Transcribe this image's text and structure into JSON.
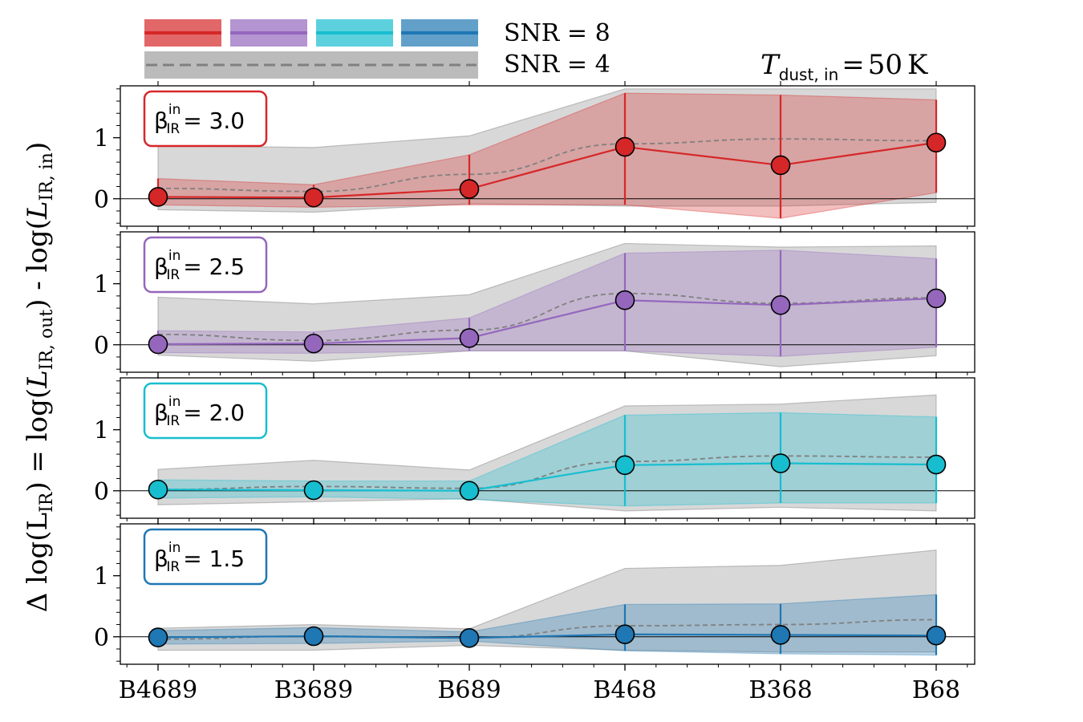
{
  "chart_data": {
    "type": "line",
    "annotation": {
      "prefix": "T",
      "sub": "dust, in",
      "equals": "=",
      "value": "50",
      "unit": "K"
    },
    "ylabel": "Δ log(L_IR) = log(L_IR, out) - log(L_IR, in)",
    "ylabel_parts": {
      "a": "Δ log(L",
      "a_sub": "IR",
      "b": ") = log(",
      "b_var": "L",
      "b_sub": "IR, out",
      "c": ") - log(",
      "c_var": "L",
      "c_sub": "IR, in",
      "d": ")"
    },
    "categories": [
      "B4689",
      "B3689",
      "B689",
      "B468",
      "B368",
      "B68"
    ],
    "ylim": [
      -0.45,
      1.85
    ],
    "yticks": [
      0,
      1
    ],
    "legend": {
      "snr8": "SNR = 8",
      "snr4": "SNR = 4"
    },
    "panels": [
      {
        "beta_label": "β",
        "beta_sup": "in",
        "beta_sub": "IR",
        "beta_value": "= 3.0",
        "color": "#d62728",
        "snr8_values": [
          0.03,
          0.02,
          0.16,
          0.85,
          0.55,
          0.92
        ],
        "snr8_err_low": [
          -0.1,
          -0.14,
          -0.1,
          -0.1,
          -0.32,
          0.1
        ],
        "snr8_err_high": [
          0.33,
          0.23,
          0.72,
          1.73,
          1.7,
          1.62
        ],
        "snr4_values": [
          0.17,
          0.12,
          0.4,
          0.9,
          0.98,
          0.95
        ],
        "snr4_low": [
          -0.18,
          -0.22,
          -0.08,
          -0.12,
          -0.12,
          -0.06
        ],
        "snr4_high": [
          0.87,
          0.84,
          1.03,
          1.8,
          1.8,
          1.8
        ]
      },
      {
        "beta_label": "β",
        "beta_sup": "in",
        "beta_sub": "IR",
        "beta_value": "= 2.5",
        "color": "#9467bd",
        "snr8_values": [
          0.01,
          0.02,
          0.11,
          0.73,
          0.65,
          0.76
        ],
        "snr8_err_low": [
          -0.13,
          -0.14,
          -0.1,
          -0.1,
          -0.19,
          -0.04
        ],
        "snr8_err_high": [
          0.23,
          0.21,
          0.44,
          1.5,
          1.55,
          1.41
        ],
        "snr4_values": [
          0.17,
          0.07,
          0.24,
          0.84,
          0.68,
          0.77
        ],
        "snr4_low": [
          -0.17,
          -0.27,
          -0.1,
          -0.1,
          -0.36,
          -0.18
        ],
        "snr4_high": [
          0.78,
          0.67,
          0.82,
          1.66,
          1.6,
          1.62
        ]
      },
      {
        "beta_label": "β",
        "beta_sup": "in",
        "beta_sub": "IR",
        "beta_value": "= 2.0",
        "color": "#17becf",
        "snr8_values": [
          0.02,
          0.01,
          0.0,
          0.42,
          0.45,
          0.43
        ],
        "snr8_err_low": [
          -0.12,
          -0.1,
          -0.14,
          -0.25,
          -0.2,
          -0.2
        ],
        "snr8_err_high": [
          0.18,
          0.16,
          0.16,
          1.24,
          1.28,
          1.21
        ],
        "snr4_values": [
          0.02,
          0.07,
          0.04,
          0.48,
          0.57,
          0.55
        ],
        "snr4_low": [
          -0.23,
          -0.18,
          -0.13,
          -0.33,
          -0.27,
          -0.33
        ],
        "snr4_high": [
          0.35,
          0.5,
          0.34,
          1.39,
          1.42,
          1.57
        ]
      },
      {
        "beta_label": "β",
        "beta_sup": "in",
        "beta_sub": "IR",
        "beta_value": "= 1.5",
        "color": "#1f77b4",
        "snr8_values": [
          -0.01,
          0.01,
          -0.02,
          0.04,
          0.03,
          0.02
        ],
        "snr8_err_low": [
          -0.12,
          -0.11,
          -0.07,
          -0.23,
          -0.28,
          -0.3
        ],
        "snr8_err_high": [
          0.1,
          0.15,
          0.08,
          0.53,
          0.54,
          0.69
        ],
        "snr4_values": [
          -0.04,
          0.01,
          -0.02,
          0.18,
          0.2,
          0.28
        ],
        "snr4_low": [
          -0.22,
          -0.22,
          -0.14,
          -0.22,
          -0.25,
          -0.25
        ],
        "snr4_high": [
          0.14,
          0.2,
          0.13,
          1.12,
          1.17,
          1.42
        ]
      }
    ]
  }
}
